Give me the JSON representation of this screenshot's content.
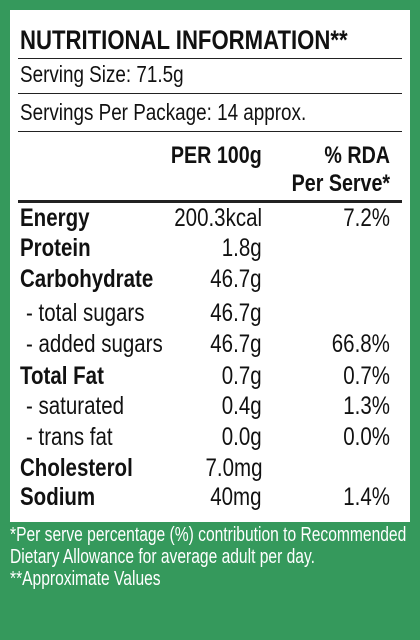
{
  "title": "NUTRITIONAL INFORMATION**",
  "serving_size": "Serving Size: 71.5g",
  "servings_per_package": "Servings Per Package: 14 approx.",
  "columns": {
    "per_100g": "PER 100g",
    "rda": [
      "% RDA",
      "Per Serve*"
    ]
  },
  "rows": [
    {
      "name": "Energy",
      "per_100g": "200.3kcal",
      "rda": "7.2%"
    },
    {
      "name": "Protein",
      "per_100g": "1.8g"
    },
    {
      "name": "Carbohydrate",
      "per_100g": "46.7g"
    },
    {
      "name": "- total sugars",
      "per_100g": "46.7g"
    },
    {
      "name": "- added sugars",
      "per_100g": "46.7g",
      "rda": "66.8%"
    },
    {
      "name": "Total Fat",
      "per_100g": "0.7g",
      "rda": "0.7%"
    },
    {
      "name": "- saturated",
      "per_100g": "0.4g",
      "rda": "1.3%"
    },
    {
      "name": "- trans fat",
      "per_100g": "0.0g",
      "rda": "0.0%"
    },
    {
      "name": "Cholesterol",
      "per_100g": "7.0mg"
    },
    {
      "name": "Sodium",
      "per_100g": "40mg",
      "rda": "1.4%"
    }
  ],
  "footnotes": [
    "*Per serve percentage (%) contribution to Recommended Dietary Allowance for average adult per day.",
    "**Approximate Values"
  ]
}
